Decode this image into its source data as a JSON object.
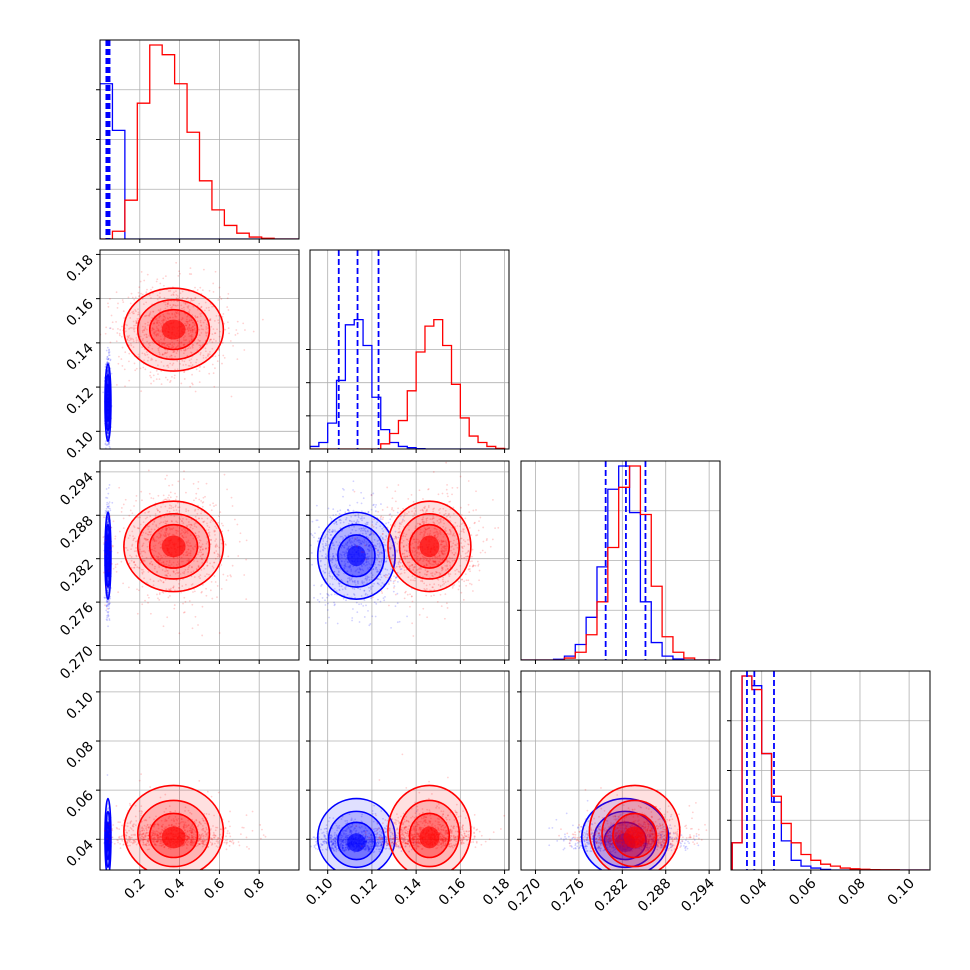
{
  "chart_data": {
    "type": "corner",
    "title": "",
    "colors": {
      "blue": "#0000ff",
      "red": "#ff0000"
    },
    "grid": true,
    "series": [
      {
        "color": "blue",
        "means": [
          0.04,
          0.113,
          0.2824,
          0.038
        ],
        "sds": [
          0.006,
          0.007,
          0.0024,
          0.0055
        ],
        "quantiles": [
          [
            0.032,
            0.036,
            0.04,
            0.044,
            0.048
          ],
          [
            0.105,
            0.1135,
            0.123
          ],
          [
            0.2797,
            0.2825,
            0.2852
          ],
          [
            0.034,
            0.037,
            0.045
          ]
        ]
      },
      {
        "color": "red",
        "means": [
          0.37,
          0.146,
          0.2837,
          0.04
        ],
        "sds": [
          0.1,
          0.0075,
          0.0025,
          0.0065
        ],
        "quantiles": []
      }
    ],
    "panels": [
      {
        "id": "diag-0",
        "row": 0,
        "col": 0,
        "kind": "hist",
        "param": 0,
        "xlim": [
          0.0,
          1.0
        ],
        "ymax": 4,
        "bins": [
          0.0,
          0.0625,
          0.125,
          0.1875,
          0.25,
          0.3125,
          0.375,
          0.4375,
          0.5,
          0.5625,
          0.625,
          0.6875,
          0.75,
          0.8125,
          0.875,
          0.9375,
          1.0
        ],
        "counts": {
          "blue": [
            0.8,
            0.56,
            0,
            0,
            0,
            0,
            0,
            0,
            0,
            0,
            0,
            0,
            0,
            0,
            0,
            0
          ],
          "red": [
            0,
            0.04,
            0.2,
            0.7,
            1.0,
            0.95,
            0.8,
            0.55,
            0.3,
            0.15,
            0.07,
            0.03,
            0.01,
            0.004,
            0,
            0
          ]
        },
        "xticks": [],
        "yticks": []
      },
      {
        "id": "diag-1",
        "row": 1,
        "col": 1,
        "kind": "hist",
        "param": 1,
        "xlim": [
          0.092,
          0.182
        ],
        "ymax": 6,
        "bins": [
          0.092,
          0.096,
          0.1,
          0.104,
          0.108,
          0.112,
          0.116,
          0.12,
          0.124,
          0.128,
          0.132,
          0.136,
          0.14,
          0.144,
          0.148,
          0.152,
          0.156,
          0.16,
          0.164,
          0.168,
          0.172,
          0.176,
          0.18
        ],
        "counts": {
          "blue": [
            0.02,
            0.05,
            0.2,
            0.53,
            0.96,
            1.0,
            0.8,
            0.4,
            0.15,
            0.05,
            0.02,
            0.01,
            0.003,
            0,
            0,
            0,
            0,
            0,
            0,
            0,
            0,
            0
          ],
          "red": [
            0,
            0,
            0,
            0,
            0,
            0,
            0,
            0,
            0.04,
            0.12,
            0.22,
            0.45,
            0.75,
            0.95,
            1.0,
            0.8,
            0.5,
            0.24,
            0.1,
            0.05,
            0.02,
            0.005
          ]
        },
        "xticks": [],
        "yticks": []
      },
      {
        "id": "diag-2",
        "row": 2,
        "col": 2,
        "kind": "hist",
        "param": 2,
        "xlim": [
          0.268,
          0.2955
        ],
        "ymax": 4,
        "bins": [
          0.268,
          0.2695,
          0.271,
          0.2725,
          0.274,
          0.2755,
          0.277,
          0.2785,
          0.28,
          0.2815,
          0.283,
          0.2845,
          0.286,
          0.2875,
          0.289,
          0.2905,
          0.292,
          0.2935,
          0.295
        ],
        "counts": {
          "blue": [
            0,
            0,
            0,
            0.004,
            0.02,
            0.08,
            0.22,
            0.48,
            0.88,
            1.0,
            0.76,
            0.3,
            0.09,
            0.02,
            0.005,
            0,
            0,
            0
          ],
          "red": [
            0,
            0,
            0,
            0,
            0.01,
            0.04,
            0.13,
            0.3,
            0.58,
            0.89,
            1.0,
            0.75,
            0.38,
            0.12,
            0.04,
            0.01,
            0,
            0
          ]
        },
        "xticks": [],
        "yticks": []
      },
      {
        "id": "diag-3",
        "row": 3,
        "col": 3,
        "kind": "hist",
        "param": 3,
        "xlim": [
          0.0275,
          0.1085
        ],
        "ymax": 4,
        "bins": [
          0.028,
          0.032,
          0.036,
          0.04,
          0.044,
          0.048,
          0.052,
          0.056,
          0.06,
          0.064,
          0.068,
          0.072,
          0.076,
          0.08,
          0.084,
          0.088,
          0.092,
          0.096,
          0.1,
          0.104,
          0.108
        ],
        "counts": {
          "blue": [
            0.14,
            1.0,
            0.95,
            0.6,
            0.35,
            0.15,
            0.05,
            0.02,
            0.01,
            0.003,
            0,
            0,
            0,
            0,
            0,
            0,
            0,
            0,
            0,
            0
          ],
          "red": [
            0.14,
            1.0,
            0.93,
            0.6,
            0.38,
            0.24,
            0.14,
            0.08,
            0.05,
            0.03,
            0.02,
            0.01,
            0.006,
            0.004,
            0.002,
            0.001,
            0.001,
            0,
            0,
            0
          ]
        },
        "xticks": [
          "0.04",
          "0.06",
          "0.08",
          "0.10"
        ],
        "yticks": []
      },
      {
        "id": "scatter-1-0",
        "row": 1,
        "col": 0,
        "kind": "scatter",
        "xparam": 0,
        "yparam": 1,
        "xlim": [
          0.0,
          1.0
        ],
        "ylim": [
          0.092,
          0.182
        ],
        "xticks": [],
        "yticks": [
          "0.10",
          "0.12",
          "0.14",
          "0.16",
          "0.18"
        ]
      },
      {
        "id": "scatter-2-0",
        "row": 2,
        "col": 0,
        "kind": "scatter",
        "xparam": 0,
        "yparam": 2,
        "xlim": [
          0.0,
          1.0
        ],
        "ylim": [
          0.268,
          0.2955
        ],
        "xticks": [],
        "yticks": [
          "0.270",
          "0.276",
          "0.282",
          "0.288",
          "0.294"
        ]
      },
      {
        "id": "scatter-2-1",
        "row": 2,
        "col": 1,
        "kind": "scatter",
        "xparam": 1,
        "yparam": 2,
        "xlim": [
          0.092,
          0.182
        ],
        "ylim": [
          0.268,
          0.2955
        ],
        "xticks": [],
        "yticks": []
      },
      {
        "id": "scatter-3-0",
        "row": 3,
        "col": 0,
        "kind": "scatter",
        "xparam": 0,
        "yparam": 3,
        "xlim": [
          0.0,
          1.0
        ],
        "ylim": [
          0.0275,
          0.1085
        ],
        "xticks": [
          "0.2",
          "0.4",
          "0.6",
          "0.8"
        ],
        "yticks": [
          "0.04",
          "0.06",
          "0.08",
          "0.10"
        ]
      },
      {
        "id": "scatter-3-1",
        "row": 3,
        "col": 1,
        "kind": "scatter",
        "xparam": 1,
        "yparam": 3,
        "xlim": [
          0.092,
          0.182
        ],
        "ylim": [
          0.0275,
          0.1085
        ],
        "xticks": [
          "0.10",
          "0.12",
          "0.14",
          "0.16",
          "0.18"
        ],
        "yticks": []
      },
      {
        "id": "scatter-3-2",
        "row": 3,
        "col": 2,
        "kind": "scatter",
        "xparam": 2,
        "yparam": 3,
        "xlim": [
          0.268,
          0.2955
        ],
        "ylim": [
          0.0275,
          0.1085
        ],
        "xticks": [
          "0.270",
          "0.276",
          "0.282",
          "0.288",
          "0.294"
        ],
        "yticks": []
      }
    ]
  }
}
